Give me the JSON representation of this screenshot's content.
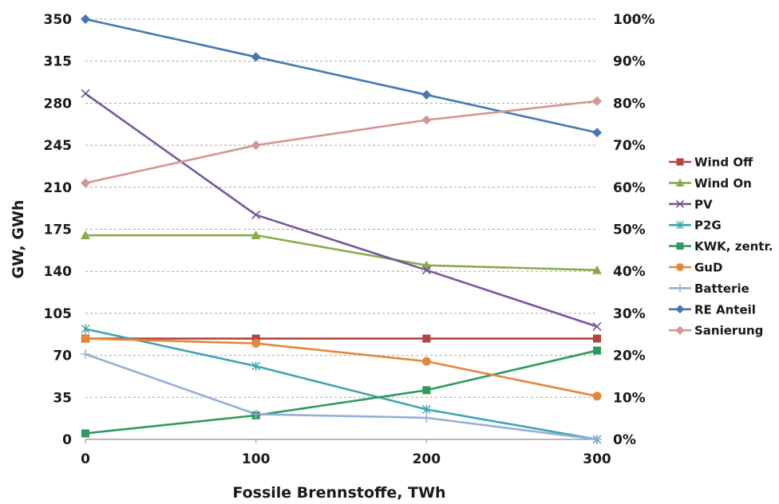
{
  "chart_data": {
    "type": "line",
    "xlabel": "Fossile Brennstoffe, TWh",
    "ylabel": "GW, GWh",
    "x": [
      0,
      100,
      200,
      300
    ],
    "xlim": [
      0,
      300
    ],
    "ylim": [
      0,
      350
    ],
    "y_ticks": [
      0,
      35,
      70,
      105,
      140,
      175,
      210,
      245,
      280,
      315,
      350
    ],
    "y2lim": [
      0,
      100
    ],
    "y2_ticks": [
      "0%",
      "10%",
      "20%",
      "30%",
      "40%",
      "50%",
      "60%",
      "70%",
      "80%",
      "90%",
      "100%"
    ],
    "grid": "horizontal dashed",
    "legend_position": "right",
    "series": [
      {
        "name": "Wind Off",
        "axis": "left",
        "values": [
          84,
          84,
          84,
          84
        ],
        "color": "#b5433f",
        "marker": "square"
      },
      {
        "name": "Wind On",
        "axis": "left",
        "values": [
          170,
          170,
          145,
          141
        ],
        "color": "#8aac48",
        "marker": "triangle"
      },
      {
        "name": "PV",
        "axis": "left",
        "values": [
          288,
          187,
          141,
          94
        ],
        "color": "#76559a",
        "marker": "x"
      },
      {
        "name": "P2G",
        "axis": "left",
        "values": [
          92,
          61,
          25,
          0
        ],
        "color": "#3ea3b6",
        "marker": "star"
      },
      {
        "name": "KWK, zentr.",
        "axis": "left",
        "values": [
          5,
          20,
          41,
          74
        ],
        "color": "#2e9a5e",
        "marker": "square"
      },
      {
        "name": "GuD",
        "axis": "left",
        "values": [
          84,
          80,
          65,
          36
        ],
        "color": "#e3883a",
        "marker": "circle"
      },
      {
        "name": "Batterie",
        "axis": "left",
        "values": [
          71,
          21,
          18,
          0
        ],
        "color": "#94afd6",
        "marker": "plus"
      },
      {
        "name": "RE Anteil",
        "axis": "right",
        "values": [
          100,
          91,
          82,
          73
        ],
        "color": "#4677b3",
        "marker": "diamond"
      },
      {
        "name": "Sanierung",
        "axis": "right",
        "values": [
          61,
          70,
          76,
          80.5
        ],
        "color": "#d59593",
        "marker": "diamond"
      }
    ]
  }
}
